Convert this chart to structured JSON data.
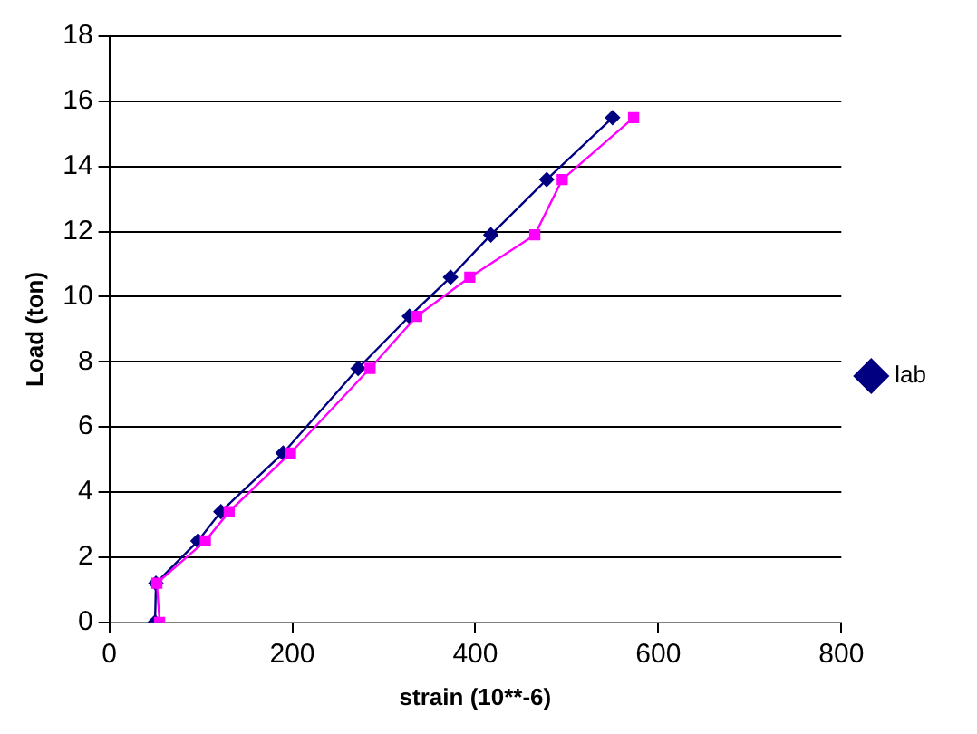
{
  "chart_data": {
    "type": "line",
    "xlabel": "strain (10**-6)",
    "ylabel": "Load (ton)",
    "xlim": [
      0,
      800
    ],
    "xticks": [
      0,
      200,
      400,
      600,
      800
    ],
    "ylim": [
      0,
      18
    ],
    "yticks": [
      0,
      2,
      4,
      6,
      8,
      10,
      12,
      14,
      16,
      18
    ],
    "grid": "y",
    "legend": "right",
    "series": [
      {
        "name": "lab",
        "color": "#000080",
        "marker": "diamond",
        "x": [
          50,
          51,
          97,
          122,
          190,
          272,
          328,
          373,
          417,
          478,
          550
        ],
        "values": [
          0,
          1.2,
          2.5,
          3.4,
          5.2,
          7.8,
          9.4,
          10.6,
          11.9,
          13.6,
          15.5
        ]
      },
      {
        "color": "#ff00ff",
        "marker": "square",
        "x": [
          55,
          52,
          105,
          131,
          198,
          285,
          336,
          394,
          465,
          495,
          573
        ],
        "values": [
          0,
          1.2,
          2.5,
          3.4,
          5.2,
          7.8,
          9.4,
          10.6,
          11.9,
          13.6,
          15.5
        ]
      }
    ]
  }
}
